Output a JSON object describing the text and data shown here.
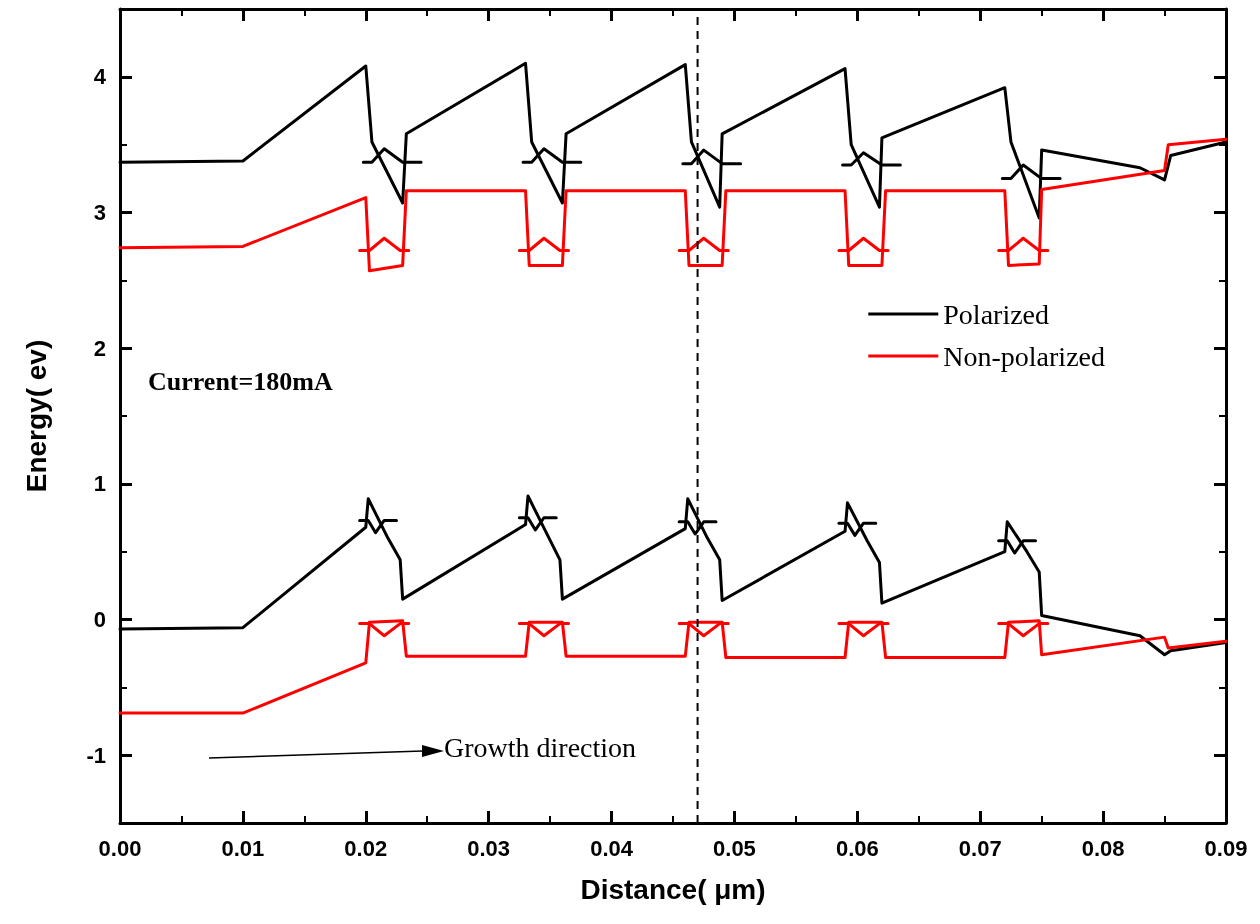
{
  "chart_data": {
    "type": "line",
    "xlabel": "Distance( μm)",
    "ylabel": "Energy( ev)",
    "xlim": [
      0,
      0.09
    ],
    "ylim": [
      -1.5,
      4.5
    ],
    "xticks": [
      {
        "value": 0,
        "label": "0.00"
      },
      {
        "value": 0.01,
        "label": "0.01"
      },
      {
        "value": 0.02,
        "label": "0.02"
      },
      {
        "value": 0.03,
        "label": "0.03"
      },
      {
        "value": 0.04,
        "label": "0.04"
      },
      {
        "value": 0.05,
        "label": "0.05"
      },
      {
        "value": 0.06,
        "label": "0.06"
      },
      {
        "value": 0.07,
        "label": "0.07"
      },
      {
        "value": 0.08,
        "label": "0.08"
      },
      {
        "value": 0.09,
        "label": "0.09"
      }
    ],
    "yticks": [
      -1,
      0,
      1,
      2,
      3,
      4
    ],
    "grid": false,
    "legend": "right",
    "marker": "none",
    "line_style": "solid",
    "annotations": [
      "Current=180mA",
      "Growth direction"
    ],
    "ref_lines": [
      {
        "axis": "x",
        "value": 0.047,
        "line_style": "dashed",
        "color": "#000000"
      }
    ],
    "series": [
      {
        "name": "Polarized",
        "color": "#000000",
        "x": [
          0,
          0.01,
          0.02,
          0.0205,
          0.023,
          0.0233,
          0.033,
          0.0335,
          0.036,
          0.0363,
          0.046,
          0.0465,
          0.0488,
          0.049,
          0.059,
          0.0595,
          0.0618,
          0.062,
          0.072,
          0.0725,
          0.0748,
          0.075,
          0.083,
          0.085,
          0.0855,
          0.09
        ],
        "values": [
          3.37,
          3.38,
          4.08,
          3.52,
          3.07,
          3.58,
          4.1,
          3.52,
          3.07,
          3.58,
          4.09,
          3.52,
          3.04,
          3.58,
          4.06,
          3.5,
          3.04,
          3.55,
          3.92,
          3.52,
          2.96,
          3.46,
          3.33,
          3.24,
          3.42,
          3.52
        ]
      },
      {
        "name": "Non-polarized",
        "color": "#ff0000",
        "x": [
          0,
          0.01,
          0.02,
          0.0203,
          0.023,
          0.0233,
          0.033,
          0.0333,
          0.036,
          0.0363,
          0.046,
          0.0463,
          0.049,
          0.0493,
          0.059,
          0.0593,
          0.062,
          0.0623,
          0.072,
          0.0723,
          0.0748,
          0.075,
          0.085,
          0.0853,
          0.09
        ],
        "values": [
          2.74,
          2.75,
          3.11,
          2.57,
          2.61,
          3.16,
          3.16,
          2.61,
          2.61,
          3.16,
          3.16,
          2.61,
          2.61,
          3.16,
          3.16,
          2.61,
          2.61,
          3.16,
          3.16,
          2.61,
          2.62,
          3.17,
          3.31,
          3.5,
          3.54
        ]
      },
      {
        "color": "#000000",
        "x": [
          0,
          0.01,
          0.02,
          0.0202,
          0.0218,
          0.0228,
          0.023,
          0.033,
          0.0332,
          0.0348,
          0.0358,
          0.036,
          0.046,
          0.0462,
          0.0478,
          0.0488,
          0.049,
          0.059,
          0.0592,
          0.0608,
          0.0618,
          0.062,
          0.072,
          0.0722,
          0.0738,
          0.0748,
          0.075,
          0.083,
          0.085,
          0.0855,
          0.09
        ],
        "values": [
          -0.07,
          -0.06,
          0.68,
          0.89,
          0.6,
          0.44,
          0.15,
          0.7,
          0.91,
          0.62,
          0.44,
          0.15,
          0.67,
          0.89,
          0.6,
          0.44,
          0.14,
          0.65,
          0.86,
          0.58,
          0.42,
          0.12,
          0.5,
          0.72,
          0.5,
          0.35,
          0.03,
          -0.12,
          -0.26,
          -0.23,
          -0.17
        ]
      },
      {
        "color": "#ff0000",
        "x": [
          0,
          0.01,
          0.02,
          0.0203,
          0.023,
          0.0233,
          0.033,
          0.0333,
          0.036,
          0.0363,
          0.046,
          0.0463,
          0.049,
          0.0493,
          0.059,
          0.0593,
          0.062,
          0.0623,
          0.072,
          0.0723,
          0.0748,
          0.075,
          0.085,
          0.0853,
          0.09
        ],
        "values": [
          -0.69,
          -0.69,
          -0.32,
          -0.02,
          -0.01,
          -0.27,
          -0.27,
          -0.02,
          -0.02,
          -0.27,
          -0.27,
          -0.02,
          -0.02,
          -0.28,
          -0.28,
          -0.02,
          -0.02,
          -0.28,
          -0.28,
          -0.02,
          -0.01,
          -0.26,
          -0.13,
          -0.21,
          -0.16
        ]
      },
      {
        "color": "#000000",
        "x": [
          0.0198,
          0.0205,
          0.0215,
          0.023,
          0.0245
        ],
        "values": [
          3.37,
          3.37,
          3.47,
          3.37,
          3.37
        ]
      },
      {
        "color": "#000000",
        "x": [
          0.0328,
          0.0335,
          0.0345,
          0.036,
          0.0375
        ],
        "values": [
          3.37,
          3.37,
          3.47,
          3.37,
          3.37
        ]
      },
      {
        "color": "#000000",
        "x": [
          0.0458,
          0.0465,
          0.0475,
          0.049,
          0.0505
        ],
        "values": [
          3.36,
          3.36,
          3.46,
          3.36,
          3.36
        ]
      },
      {
        "color": "#000000",
        "x": [
          0.0588,
          0.0595,
          0.0605,
          0.062,
          0.0635
        ],
        "values": [
          3.35,
          3.35,
          3.44,
          3.35,
          3.35
        ]
      },
      {
        "color": "#000000",
        "x": [
          0.0718,
          0.0725,
          0.0735,
          0.075,
          0.0765
        ],
        "values": [
          3.25,
          3.25,
          3.35,
          3.25,
          3.25
        ]
      },
      {
        "color": "#000000",
        "x": [
          0.0195,
          0.0202,
          0.0208,
          0.0215,
          0.0225
        ],
        "values": [
          0.73,
          0.73,
          0.64,
          0.73,
          0.73
        ]
      },
      {
        "color": "#000000",
        "x": [
          0.0325,
          0.0332,
          0.0338,
          0.0345,
          0.0355
        ],
        "values": [
          0.75,
          0.75,
          0.66,
          0.75,
          0.75
        ]
      },
      {
        "color": "#000000",
        "x": [
          0.0455,
          0.0462,
          0.0468,
          0.0475,
          0.0485
        ],
        "values": [
          0.72,
          0.72,
          0.63,
          0.72,
          0.72
        ]
      },
      {
        "color": "#000000",
        "x": [
          0.0585,
          0.0592,
          0.0598,
          0.0605,
          0.0615
        ],
        "values": [
          0.71,
          0.71,
          0.62,
          0.71,
          0.71
        ]
      },
      {
        "color": "#000000",
        "x": [
          0.0715,
          0.0722,
          0.0728,
          0.0735,
          0.0745
        ],
        "values": [
          0.58,
          0.58,
          0.49,
          0.58,
          0.58
        ]
      },
      {
        "color": "#ff0000",
        "x": [
          0.0195,
          0.0203,
          0.0215,
          0.0228,
          0.0235
        ],
        "values": [
          2.72,
          2.72,
          2.81,
          2.72,
          2.72
        ]
      },
      {
        "color": "#ff0000",
        "x": [
          0.0325,
          0.0333,
          0.0345,
          0.0358,
          0.0365
        ],
        "values": [
          2.72,
          2.72,
          2.81,
          2.72,
          2.72
        ]
      },
      {
        "color": "#ff0000",
        "x": [
          0.0455,
          0.0463,
          0.0475,
          0.0488,
          0.0495
        ],
        "values": [
          2.72,
          2.72,
          2.81,
          2.72,
          2.72
        ]
      },
      {
        "color": "#ff0000",
        "x": [
          0.0585,
          0.0593,
          0.0605,
          0.0618,
          0.0625
        ],
        "values": [
          2.72,
          2.72,
          2.81,
          2.72,
          2.72
        ]
      },
      {
        "color": "#ff0000",
        "x": [
          0.0715,
          0.0723,
          0.0735,
          0.0748,
          0.0755
        ],
        "values": [
          2.72,
          2.72,
          2.81,
          2.72,
          2.72
        ]
      },
      {
        "color": "#ff0000",
        "x": [
          0.0195,
          0.0203,
          0.0215,
          0.0228,
          0.0235
        ],
        "values": [
          -0.03,
          -0.03,
          -0.12,
          -0.03,
          -0.03
        ]
      },
      {
        "color": "#ff0000",
        "x": [
          0.0325,
          0.0333,
          0.0345,
          0.0358,
          0.0365
        ],
        "values": [
          -0.03,
          -0.03,
          -0.12,
          -0.03,
          -0.03
        ]
      },
      {
        "color": "#ff0000",
        "x": [
          0.0455,
          0.0463,
          0.0475,
          0.0488,
          0.0495
        ],
        "values": [
          -0.03,
          -0.03,
          -0.12,
          -0.03,
          -0.03
        ]
      },
      {
        "color": "#ff0000",
        "x": [
          0.0585,
          0.0593,
          0.0605,
          0.0618,
          0.0625
        ],
        "values": [
          -0.03,
          -0.03,
          -0.12,
          -0.03,
          -0.03
        ]
      },
      {
        "color": "#ff0000",
        "x": [
          0.0715,
          0.0723,
          0.0735,
          0.0748,
          0.0755
        ],
        "values": [
          -0.03,
          -0.03,
          -0.12,
          -0.03,
          -0.03
        ]
      }
    ]
  }
}
